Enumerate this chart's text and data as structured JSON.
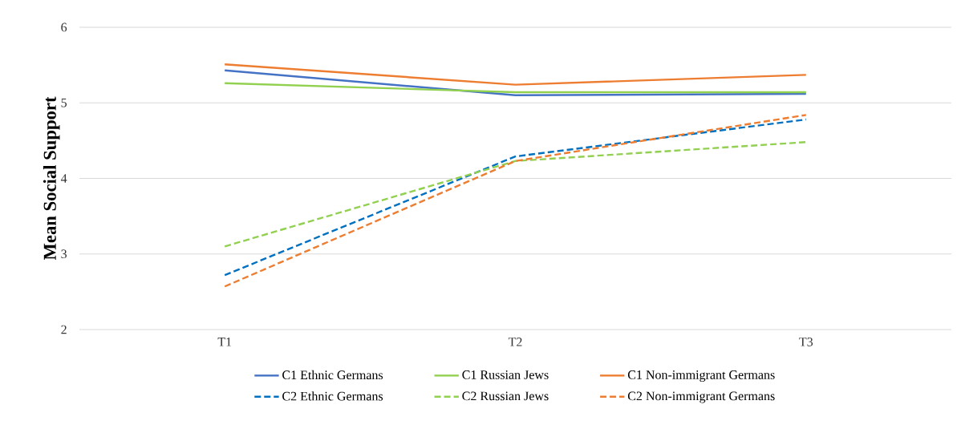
{
  "chart_data": {
    "type": "line",
    "ylabel": "Mean Social Support",
    "categories": [
      "T1",
      "T2",
      "T3"
    ],
    "ylim": [
      2,
      6
    ],
    "yticks": [
      2,
      3,
      4,
      5,
      6
    ],
    "grid": "y",
    "legend": "bottom",
    "marker": "none",
    "series": [
      {
        "name": "C1 Ethnic Germans",
        "color": "#4472c4",
        "line_style": "solid",
        "values": [
          5.43,
          5.1,
          5.12
        ]
      },
      {
        "name": "C1 Russian Jews",
        "color": "#92d050",
        "line_style": "solid",
        "values": [
          5.26,
          5.14,
          5.14
        ]
      },
      {
        "name": "C1 Non-immigrant Germans",
        "color": "#ed7d31",
        "line_style": "solid",
        "values": [
          5.51,
          5.24,
          5.37
        ]
      },
      {
        "name": "C2 Ethnic Germans",
        "color": "#0070c0",
        "line_style": "dashed",
        "values": [
          2.72,
          4.29,
          4.78
        ]
      },
      {
        "name": "C2 Russian Jews",
        "color": "#92d050",
        "line_style": "dashed",
        "values": [
          3.1,
          4.23,
          4.48
        ]
      },
      {
        "name": "C2 Non-immigrant Germans",
        "color": "#ed7d31",
        "line_style": "dashed",
        "values": [
          2.57,
          4.23,
          4.84
        ]
      }
    ]
  }
}
